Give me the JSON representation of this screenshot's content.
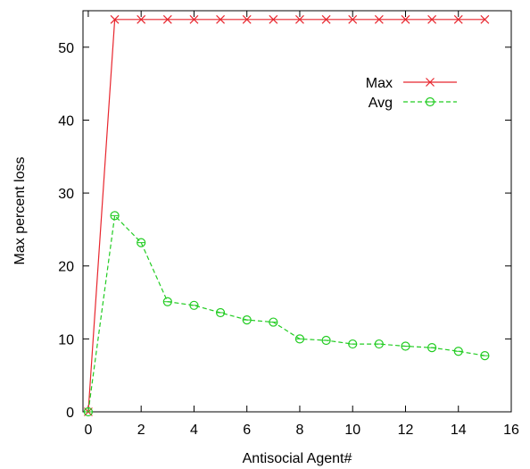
{
  "chart_data": {
    "type": "line",
    "xlabel": "Antisocial Agent#",
    "ylabel": "Max percent loss",
    "xlim": [
      -0.2,
      16
    ],
    "ylim": [
      0,
      55
    ],
    "xticks": [
      0,
      2,
      4,
      6,
      8,
      10,
      12,
      14,
      16
    ],
    "yticks": [
      0,
      10,
      20,
      30,
      40,
      50
    ],
    "legend_position": "top-right",
    "grid": false,
    "series": [
      {
        "name": "Max",
        "color": "#e8262e",
        "marker": "x",
        "dash": "solid",
        "x": [
          0,
          1,
          2,
          3,
          4,
          5,
          6,
          7,
          8,
          9,
          10,
          11,
          12,
          13,
          14,
          15
        ],
        "y": [
          0,
          53.8,
          53.8,
          53.8,
          53.8,
          53.8,
          53.8,
          53.8,
          53.8,
          53.8,
          53.8,
          53.8,
          53.8,
          53.8,
          53.8,
          53.8
        ]
      },
      {
        "name": "Avg",
        "color": "#22cc22",
        "marker": "circle",
        "dash": "dashed",
        "x": [
          0,
          1,
          2,
          3,
          4,
          5,
          6,
          7,
          8,
          9,
          10,
          11,
          12,
          13,
          14,
          15
        ],
        "y": [
          0,
          26.9,
          23.2,
          15.1,
          14.6,
          13.6,
          12.6,
          12.3,
          10.0,
          9.8,
          9.3,
          9.3,
          9.0,
          8.8,
          8.3,
          7.7
        ]
      }
    ]
  }
}
